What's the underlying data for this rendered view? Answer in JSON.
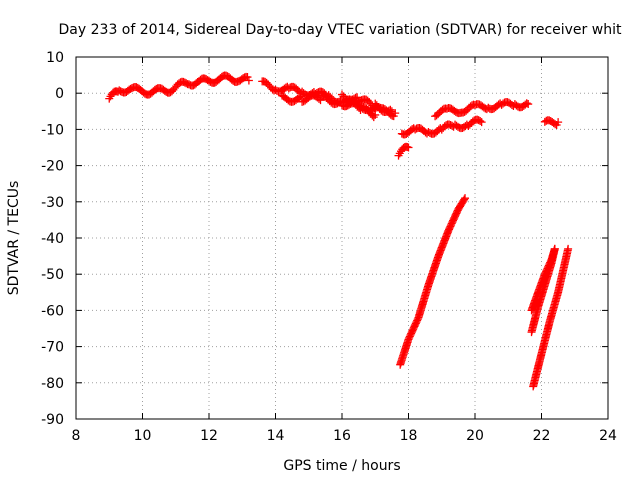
{
  "chart_data": {
    "type": "scatter",
    "title": "Day 233 of 2014, Sidereal Day-to-day VTEC variation (SDTVAR) for receiver whit",
    "xlabel": "GPS time / hours",
    "ylabel": "SDTVAR / TECUs",
    "xlim": [
      8,
      24
    ],
    "ylim": [
      -90,
      10
    ],
    "xticks": [
      8,
      10,
      12,
      14,
      16,
      18,
      20,
      22,
      24
    ],
    "yticks": [
      10,
      0,
      -10,
      -20,
      -30,
      -40,
      -50,
      -60,
      -70,
      -80,
      -90
    ],
    "grid": true,
    "legend": "none",
    "marker": "+",
    "color": "#ff0000",
    "series": [
      {
        "x": [
          9.0,
          9.3,
          9.6,
          9.9,
          10.2,
          10.5,
          10.8,
          11.1,
          11.4,
          11.7,
          12.0,
          12.3,
          12.6,
          12.9,
          13.2
        ],
        "y": [
          -1.5,
          0.5,
          1.5,
          0.5,
          0.5,
          0.5,
          1.0,
          2.0,
          3.0,
          3.0,
          3.5,
          4.0,
          4.0,
          4.0,
          3.5
        ]
      },
      {
        "x": [
          13.6,
          14.0,
          14.4,
          14.8,
          15.2,
          15.6,
          16.0,
          16.4,
          16.8,
          17.2,
          17.6
        ],
        "y": [
          2.5,
          1.5,
          1.0,
          0.5,
          0.0,
          -1.0,
          -2.0,
          -3.0,
          -4.0,
          -5.0,
          -5.5
        ]
      },
      {
        "x": [
          14.2,
          14.8,
          15.4,
          16.0,
          16.6,
          17.0
        ],
        "y": [
          -1.5,
          -1.5,
          -1.5,
          -2.5,
          -4.5,
          -6.0
        ]
      },
      {
        "x": [
          16.0,
          16.5,
          17.0,
          17.5
        ],
        "y": [
          -0.5,
          -2.0,
          -3.5,
          -5.0
        ]
      },
      {
        "x": [
          17.8,
          18.2,
          18.6,
          19.0,
          19.4,
          19.8,
          20.2
        ],
        "y": [
          -10.5,
          -10.5,
          -10.5,
          -10.0,
          -9.0,
          -8.5,
          -8.0
        ]
      },
      {
        "x": [
          18.8,
          19.2,
          19.6,
          20.0,
          20.4,
          20.8,
          21.2,
          21.6
        ],
        "y": [
          -5.5,
          -5.0,
          -4.5,
          -4.0,
          -3.5,
          -3.5,
          -3.0,
          -3.0
        ]
      },
      {
        "x": [
          17.7,
          18.0
        ],
        "y": [
          -17.0,
          -15.0
        ]
      },
      {
        "x": [
          22.1,
          22.5
        ],
        "y": [
          -8.5,
          -8.0
        ]
      },
      {
        "x": [
          17.75,
          18.0,
          18.3,
          18.6,
          18.9,
          19.2,
          19.5,
          19.7
        ],
        "y": [
          -75,
          -68,
          -62,
          -53,
          -45,
          -38,
          -32,
          -29
        ]
      },
      {
        "x": [
          21.7,
          21.9,
          22.1,
          22.3,
          22.4
        ],
        "y": [
          -66,
          -59,
          -53,
          -47,
          -43
        ]
      },
      {
        "x": [
          21.7,
          21.9,
          22.1,
          22.3,
          22.4
        ],
        "y": [
          -60,
          -55,
          -50,
          -46,
          -43
        ]
      },
      {
        "x": [
          21.75,
          22.0,
          22.25,
          22.5,
          22.8
        ],
        "y": [
          -81,
          -72,
          -63,
          -55,
          -43
        ]
      }
    ]
  }
}
